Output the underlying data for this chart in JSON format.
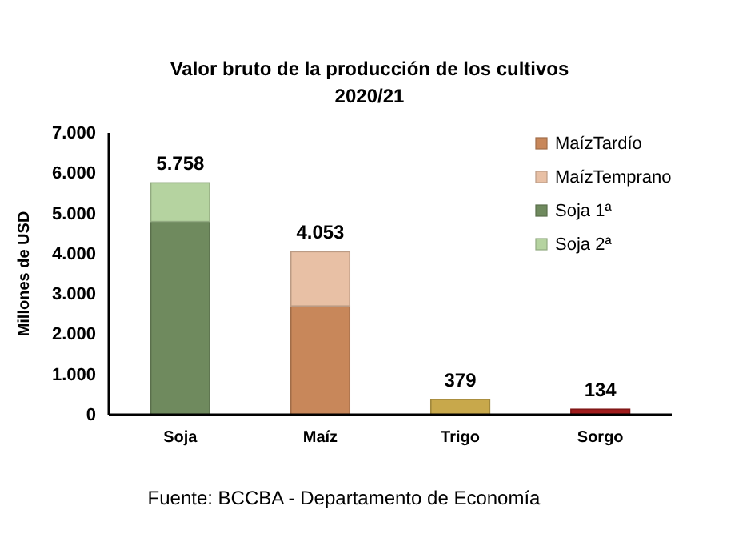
{
  "chart_data": {
    "type": "bar",
    "title": "Valor bruto de la producción de los cultivos",
    "subtitle": "2020/21",
    "ylabel": "Millones de USD",
    "categories": [
      "Soja",
      "Maíz",
      "Trigo",
      "Sorgo"
    ],
    "stacked": true,
    "series": [
      {
        "name": "MaízTardío",
        "color": "#c8875a",
        "values": [
          null,
          2700,
          null,
          null
        ]
      },
      {
        "name": "MaízTemprano",
        "color": "#e8c0a5",
        "values": [
          null,
          1350,
          null,
          null
        ]
      },
      {
        "name": "Soja 1ª",
        "color": "#6f8a5e",
        "values": [
          4800,
          null,
          null,
          null
        ]
      },
      {
        "name": "Soja 2ª",
        "color": "#b5d3a0",
        "values": [
          960,
          null,
          null,
          null
        ]
      },
      {
        "color": "#c8a84b",
        "values": [
          null,
          null,
          379,
          null
        ]
      },
      {
        "color": "#a01c1c",
        "values": [
          null,
          null,
          null,
          134
        ]
      }
    ],
    "totals": [
      "5.758",
      "4.053",
      "379",
      "134"
    ],
    "ylim": [
      0,
      7000
    ],
    "yticks": [
      0,
      {
        "value": 1000,
        "label": "1.000"
      },
      {
        "value": 2000,
        "label": "2.000"
      },
      {
        "value": 3000,
        "label": "3.000"
      },
      {
        "value": 4000,
        "label": "4.000"
      },
      {
        "value": 5000,
        "label": "5.000"
      },
      {
        "value": 6000,
        "label": "6.000"
      },
      {
        "value": 7000,
        "label": "7.000"
      }
    ],
    "grid": false,
    "legend": "top right",
    "annotations": [
      "Fuente: BCCBA - Departamento de Economía"
    ]
  }
}
